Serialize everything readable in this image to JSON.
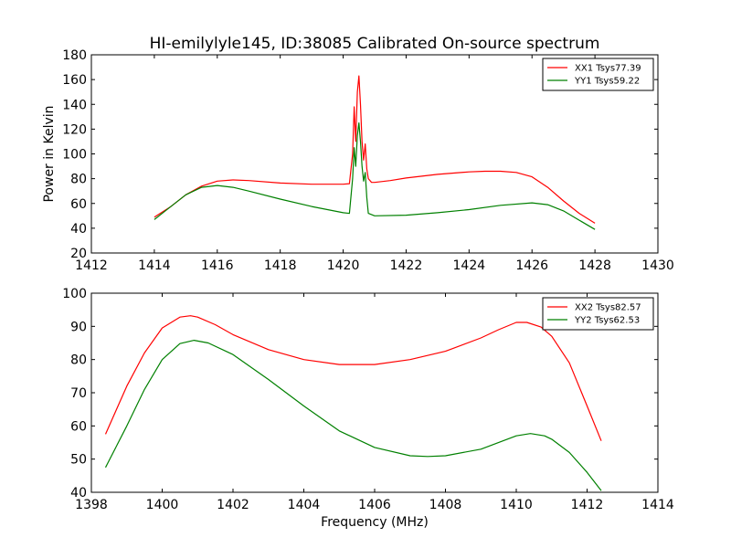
{
  "figure": {
    "title": "HI-emilylyle145, ID:38085 Calibrated On-source spectrum"
  },
  "colors": {
    "xx": "#ff0000",
    "yy": "#008000"
  },
  "chart_data": [
    {
      "type": "line",
      "title": "HI-emilylyle145, ID:38085 Calibrated On-source spectrum",
      "xlabel": "",
      "ylabel": "Power in Kelvin",
      "xlim": [
        1412,
        1430
      ],
      "ylim": [
        20,
        180
      ],
      "xticks": [
        1412,
        1414,
        1416,
        1418,
        1420,
        1422,
        1424,
        1426,
        1428,
        1430
      ],
      "yticks": [
        20,
        40,
        60,
        80,
        100,
        120,
        140,
        160,
        180
      ],
      "grid": false,
      "legend_position": "top-right",
      "series": [
        {
          "name": "XX1 Tsys77.39",
          "color": "#ff0000",
          "x": [
            1414,
            1414.5,
            1415,
            1415.5,
            1416,
            1416.5,
            1417,
            1418,
            1419,
            1420,
            1420.2,
            1420.3,
            1420.35,
            1420.4,
            1420.45,
            1420.5,
            1420.55,
            1420.6,
            1420.65,
            1420.7,
            1420.75,
            1420.8,
            1420.9,
            1421,
            1421.5,
            1422,
            1423,
            1424,
            1424.5,
            1425,
            1425.5,
            1426,
            1426.5,
            1427,
            1427.5,
            1428
          ],
          "y": [
            49,
            57,
            67,
            74,
            78,
            79,
            78.5,
            76.5,
            75.5,
            75.5,
            76,
            100,
            138,
            110,
            150,
            163,
            140,
            110,
            95,
            108,
            88,
            80,
            77,
            77,
            78.5,
            80.5,
            83.5,
            85.5,
            86,
            86,
            85,
            81.5,
            73,
            62,
            52,
            44
          ]
        },
        {
          "name": "YY1 Tsys59.22",
          "color": "#008000",
          "x": [
            1414,
            1414.5,
            1415,
            1415.5,
            1416,
            1416.5,
            1417,
            1418,
            1419,
            1420,
            1420.2,
            1420.3,
            1420.35,
            1420.4,
            1420.45,
            1420.5,
            1420.55,
            1420.6,
            1420.65,
            1420.7,
            1420.75,
            1420.8,
            1421,
            1422,
            1423,
            1424,
            1425,
            1426,
            1426.5,
            1427,
            1427.5,
            1428
          ],
          "y": [
            47,
            57,
            67,
            73,
            74.5,
            73,
            70,
            63.5,
            57.5,
            52.5,
            52,
            80,
            105,
            90,
            115,
            125,
            110,
            90,
            78,
            85,
            65,
            52,
            50,
            50.5,
            52.5,
            55,
            58.5,
            60.5,
            59,
            54,
            46.5,
            39
          ]
        }
      ]
    },
    {
      "type": "line",
      "xlabel": "Frequency (MHz)",
      "ylabel": "",
      "xlim": [
        1398,
        1414
      ],
      "ylim": [
        40,
        100
      ],
      "xticks": [
        1398,
        1400,
        1402,
        1404,
        1406,
        1408,
        1410,
        1412,
        1414
      ],
      "yticks": [
        40,
        50,
        60,
        70,
        80,
        90,
        100
      ],
      "grid": false,
      "legend_position": "top-right",
      "series": [
        {
          "name": "XX2 Tsys82.57",
          "color": "#ff0000",
          "x": [
            1398.4,
            1399,
            1399.5,
            1400,
            1400.5,
            1400.8,
            1401,
            1401.5,
            1402,
            1403,
            1404,
            1405,
            1406,
            1407,
            1408,
            1409,
            1409.5,
            1410,
            1410.3,
            1410.7,
            1411,
            1411.5,
            1412,
            1412.4
          ],
          "y": [
            57.5,
            72,
            82,
            89.5,
            92.8,
            93.2,
            92.8,
            90.5,
            87.5,
            83,
            80,
            78.5,
            78.5,
            80,
            82.5,
            86.5,
            89,
            91.2,
            91.2,
            89.8,
            87,
            79,
            66,
            55.5
          ]
        },
        {
          "name": "YY2 Tsys62.53",
          "color": "#008000",
          "x": [
            1398.4,
            1399,
            1399.5,
            1400,
            1400.5,
            1400.9,
            1401.3,
            1402,
            1403,
            1404,
            1405,
            1406,
            1407,
            1407.5,
            1408,
            1409,
            1410,
            1410.4,
            1410.8,
            1411,
            1411.5,
            1412,
            1412.4
          ],
          "y": [
            47.5,
            60,
            71,
            80,
            84.8,
            85.8,
            85,
            81.5,
            74,
            66,
            58.5,
            53.5,
            51,
            50.8,
            51,
            53,
            57,
            57.7,
            57,
            56,
            52,
            46,
            40.5
          ]
        }
      ]
    }
  ]
}
